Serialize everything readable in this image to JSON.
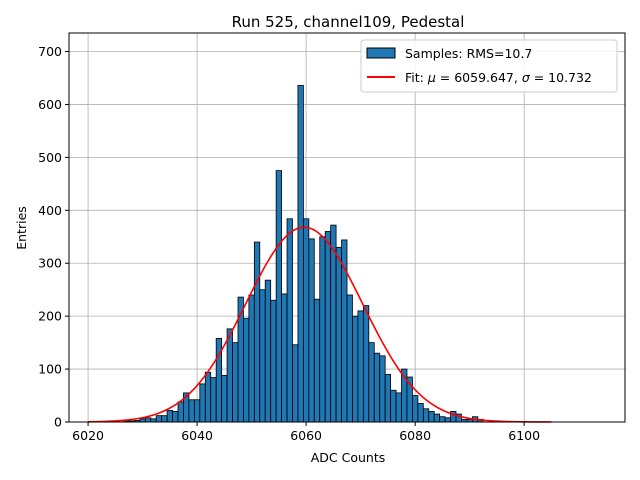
{
  "chart_data": {
    "type": "bar",
    "title": "Run 525, channel109, Pedestal",
    "xlabel": "ADC Counts",
    "ylabel": "Entries",
    "xlim": [
      6016.5,
      6118.5
    ],
    "ylim": [
      0,
      735
    ],
    "xticks": [
      6020,
      6040,
      6060,
      6080,
      6100
    ],
    "yticks": [
      0,
      100,
      200,
      300,
      400,
      500,
      600,
      700
    ],
    "grid": true,
    "legend_position": "top-right",
    "bin_width": 1,
    "bins": {
      "x": [
        6027,
        6028,
        6029,
        6030,
        6031,
        6032,
        6033,
        6034,
        6035,
        6036,
        6037,
        6038,
        6039,
        6040,
        6041,
        6042,
        6043,
        6044,
        6045,
        6046,
        6047,
        6048,
        6049,
        6050,
        6051,
        6052,
        6053,
        6054,
        6055,
        6056,
        6057,
        6058,
        6059,
        6060,
        6061,
        6062,
        6063,
        6064,
        6065,
        6066,
        6067,
        6068,
        6069,
        6070,
        6071,
        6072,
        6073,
        6074,
        6075,
        6076,
        6077,
        6078,
        6079,
        6080,
        6081,
        6082,
        6083,
        6084,
        6085,
        6086,
        6087,
        6088,
        6089,
        6090,
        6091,
        6092
      ],
      "values": [
        2,
        2,
        3,
        6,
        8,
        6,
        12,
        12,
        22,
        20,
        38,
        55,
        42,
        42,
        72,
        94,
        84,
        158,
        88,
        176,
        150,
        236,
        196,
        240,
        340,
        250,
        268,
        230,
        475,
        242,
        384,
        146,
        636,
        384,
        346,
        232,
        350,
        360,
        372,
        330,
        344,
        240,
        200,
        210,
        220,
        150,
        130,
        125,
        90,
        60,
        55,
        100,
        85,
        50,
        35,
        25,
        20,
        15,
        10,
        8,
        20,
        15,
        5,
        5,
        10,
        5
      ],
      "color": "#1f77b4",
      "edge_color": "#000000"
    },
    "series": [
      {
        "name": "Samples: RMS=10.7",
        "kind": "histogram"
      },
      {
        "name_prefix": "Fit: ",
        "name_suffix": " = 6059.647, ",
        "name_suffix2": " = 10.732",
        "mu_symbol": "μ",
        "sigma_symbol": "σ",
        "kind": "line",
        "color": "#ff0000",
        "mu": 6059.647,
        "sigma": 10.732,
        "amplitude": 368,
        "x_range": [
          6020,
          6105
        ]
      }
    ]
  }
}
